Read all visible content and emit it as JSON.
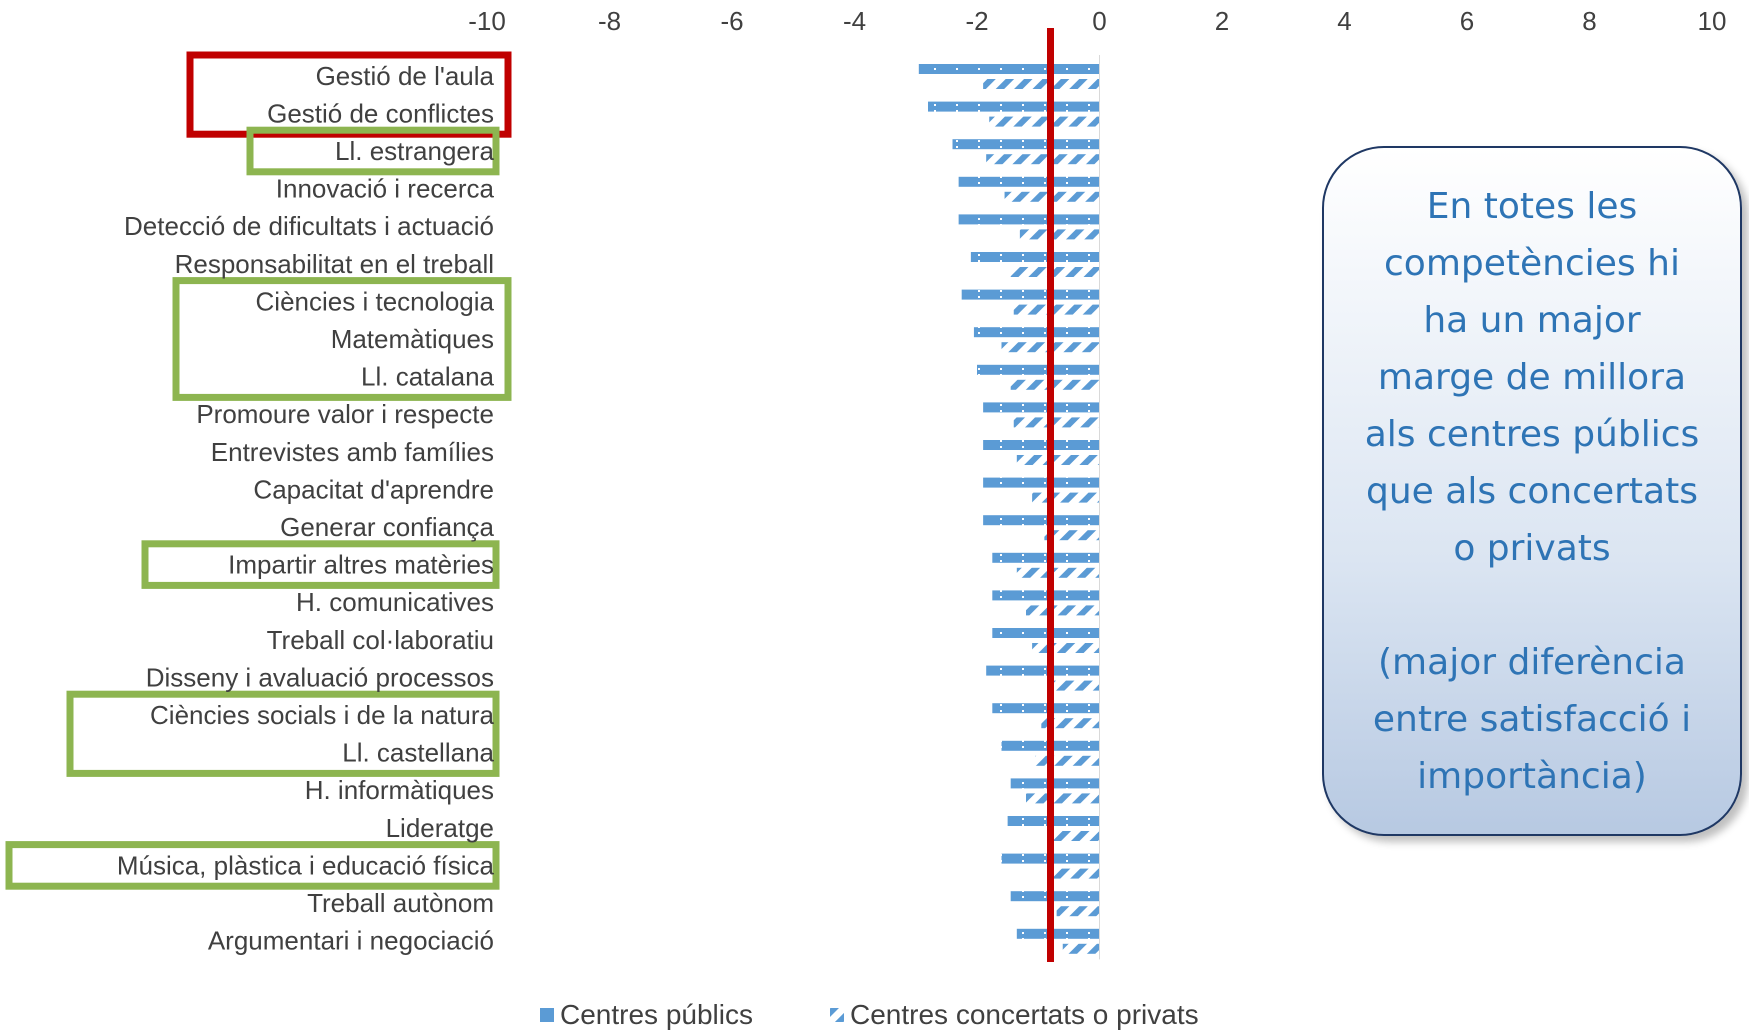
{
  "chart_data": {
    "type": "bar",
    "orientation": "horizontal",
    "xlim": [
      -10,
      10
    ],
    "x_ticks": [
      -10,
      -8,
      -6,
      -4,
      -2,
      0,
      2,
      4,
      6,
      8,
      10
    ],
    "reference_line_x": -0.8,
    "legend_position": "bottom",
    "categories": [
      "Gestió de l'aula",
      "Gestió de conflictes",
      "Ll. estrangera",
      "Innovació i recerca",
      "Detecció de dificultats i actuació",
      "Responsabilitat en el treball",
      "Ciències i tecnologia",
      "Matemàtiques",
      "Ll. catalana",
      "Promoure valor i respecte",
      "Entrevistes amb famílies",
      "Capacitat d'aprendre",
      "Generar confiança",
      "Impartir altres matèries",
      "H. comunicatives",
      "Treball col·laboratiu",
      "Disseny i avaluació processos",
      "Ciències socials i de la natura",
      "Ll. castellana",
      "H. informàtiques",
      "Lideratge",
      "Música, plàstica i educació física",
      "Treball autònom",
      "Argumentari i negociació"
    ],
    "series": [
      {
        "name": "Centres públics",
        "color": "#5b9bd5",
        "pattern": "dotted",
        "values": [
          -2.95,
          -2.8,
          -2.4,
          -2.3,
          -2.3,
          -2.1,
          -2.25,
          -2.05,
          -2.0,
          -1.9,
          -1.9,
          -1.9,
          -1.9,
          -1.75,
          -1.75,
          -1.75,
          -1.85,
          -1.75,
          -1.6,
          -1.45,
          -1.5,
          -1.6,
          -1.45,
          -1.35
        ]
      },
      {
        "name": "Centres concertats o privats",
        "color": "#5b9bd5",
        "pattern": "hatched",
        "values": [
          -1.9,
          -1.8,
          -1.85,
          -1.55,
          -1.3,
          -1.45,
          -1.4,
          -1.6,
          -1.45,
          -1.4,
          -1.35,
          -1.1,
          -0.9,
          -1.35,
          -1.2,
          -1.1,
          -0.75,
          -0.95,
          -1.05,
          -1.2,
          -0.8,
          -0.8,
          -0.7,
          -0.6
        ]
      }
    ],
    "highlight_groups": [
      {
        "color": "#c00000",
        "from": 0,
        "to": 1
      },
      {
        "color": "#8db550",
        "from": 2,
        "to": 2
      },
      {
        "color": "#8db550",
        "from": 6,
        "to": 8
      },
      {
        "color": "#8db550",
        "from": 13,
        "to": 13
      },
      {
        "color": "#8db550",
        "from": 17,
        "to": 18
      },
      {
        "color": "#8db550",
        "from": 21,
        "to": 21
      }
    ]
  },
  "callout": {
    "text": "En totes les\ncompetències hi\nha un major\nmarge de millora\nals centres públics\nque als concertats\no privats\n\n(major diferència\nentre satisfacció i\nimportància)"
  }
}
